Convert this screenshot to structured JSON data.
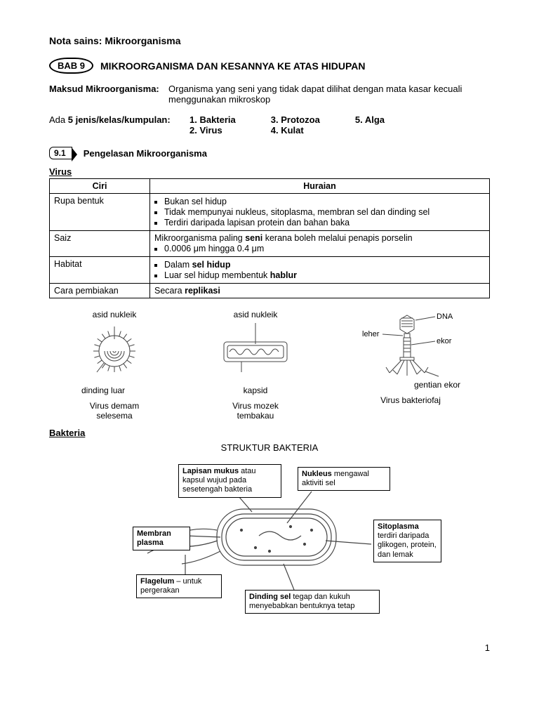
{
  "pageTitle": "Nota sains: Mikroorganisma",
  "bab": {
    "num": "BAB 9",
    "title": "MIKROORGANISMA DAN KESANNYA KE ATAS HIDUPAN"
  },
  "maksud": {
    "label": "Maksud Mikroorganisma:",
    "text": "Organisma yang seni yang tidak dapat dilihat dengan mata kasar kecuali menggunakan mikroskop"
  },
  "jenis": {
    "prefix": "Ada ",
    "bold": "5 jenis/kelas/kumpulan:",
    "col1a": "1.  Bakteria",
    "col1b": "2.  Virus",
    "col2a": "3.  Protozoa",
    "col2b": "4.  Kulat",
    "col3a": "5. Alga"
  },
  "sub": {
    "num": "9.1",
    "title": "Pengelasan Mikroorganisma"
  },
  "virusHeading": "Virus",
  "table": {
    "h1": "Ciri",
    "h2": "Huraian",
    "rows": [
      {
        "c": "Rupa bentuk",
        "items": [
          "Bukan sel hidup",
          "Tidak mempunyai nukleus, sitoplasma, membran sel dan dinding sel",
          "Terdiri daripada lapisan protein dan bahan baka"
        ]
      },
      {
        "c": "Saiz",
        "pre": "Mikroorganisma paling ",
        "bold": "seni",
        "post": "  kerana boleh melalui penapis porselin",
        "items": [
          "0.0006 μm hingga 0.4 μm"
        ]
      },
      {
        "c": "Habitat",
        "htmlItems": [
          "Dalam <b>sel hidup</b>",
          "Luar sel hidup membentuk <b>hablur</b>"
        ]
      },
      {
        "c": "Cara pembiakan",
        "plain": "Secara <b>replikasi</b>"
      }
    ]
  },
  "diagrams": {
    "d1": {
      "l1": "asid nukleik",
      "l2": "dinding luar",
      "cap": "Virus demam\nselesema"
    },
    "d2": {
      "l1": "asid nukleik",
      "l2": "kapsid",
      "cap": "Virus mozek\ntembakau"
    },
    "d3": {
      "l1": "DNA",
      "l2": "leher",
      "l3": "ekor",
      "l4": "gentian ekor",
      "cap": "Virus bakteriofaj"
    }
  },
  "bakteriaHeading": "Bakteria",
  "bakteriaTitle": "STRUKTUR BAKTERIA",
  "bakLabels": {
    "mukus": "<b>Lapisan mukus</b> atau kapsul wujud pada sesetengah bakteria",
    "nukleus": "<b>Nukleus</b> mengawal aktiviti sel",
    "membran": "<b>Membran plasma</b>",
    "sito": "<b>Sitoplasma</b> terdiri daripada glikogen, protein, dan lemak",
    "flagel": "<b>Flagelum</b> – untuk pergerakan",
    "dinding": "<b>Dinding sel</b> tegap dan kukuh menyebabkan bentuknya tetap"
  },
  "pageNum": "1"
}
